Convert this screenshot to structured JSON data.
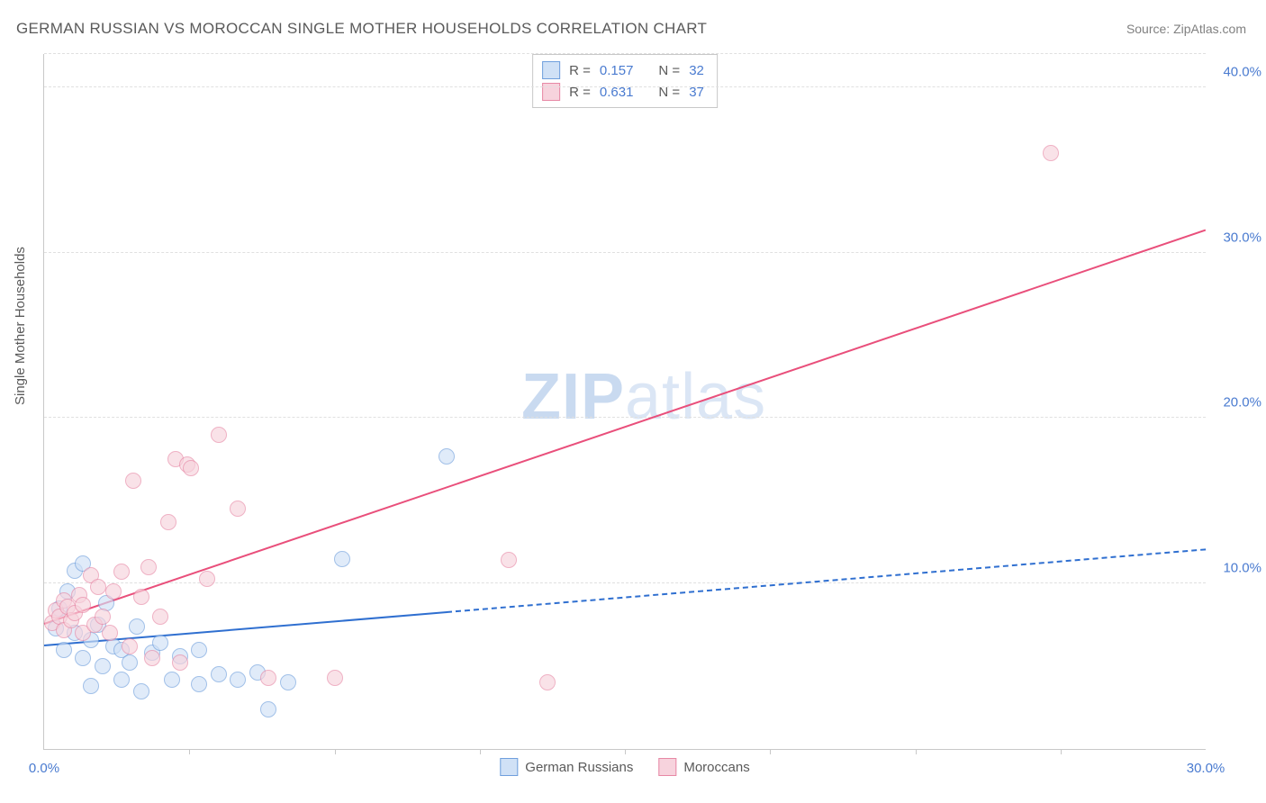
{
  "title": "GERMAN RUSSIAN VS MOROCCAN SINGLE MOTHER HOUSEHOLDS CORRELATION CHART",
  "source": "Source: ZipAtlas.com",
  "y_axis_label": "Single Mother Households",
  "watermark": {
    "bold": "ZIP",
    "rest": "atlas"
  },
  "chart": {
    "type": "scatter-correlation",
    "xlim": [
      0,
      30
    ],
    "ylim": [
      0,
      42
    ],
    "x_ticks_major": [
      0,
      30
    ],
    "x_ticks_minor": [
      3.75,
      7.5,
      11.25,
      15,
      18.75,
      22.5,
      26.25
    ],
    "y_ticks": [
      10,
      20,
      30,
      40
    ],
    "x_tick_labels": {
      "0": "0.0%",
      "30": "30.0%"
    },
    "y_tick_labels": {
      "10": "10.0%",
      "20": "20.0%",
      "30": "30.0%",
      "40": "40.0%"
    },
    "background_color": "#ffffff",
    "grid_color": "#e0e0e0",
    "axis_color": "#c8c8c8",
    "tick_label_color": "#4a7bd0",
    "point_radius": 9,
    "series": [
      {
        "name": "German Russians",
        "fill": "#d0e1f6",
        "stroke": "#6f9fdd",
        "fill_opacity": 0.65,
        "trend": {
          "x1": 0,
          "y1": 6.2,
          "x2": 30,
          "y2": 12.0,
          "solid_until_x": 10.4,
          "color": "#2f6fd0",
          "width": 2
        },
        "points": [
          [
            0.3,
            7.3
          ],
          [
            0.4,
            8.5
          ],
          [
            0.5,
            6.0
          ],
          [
            0.6,
            9.5
          ],
          [
            0.8,
            10.8
          ],
          [
            0.8,
            7.0
          ],
          [
            1.0,
            5.5
          ],
          [
            1.0,
            11.2
          ],
          [
            1.2,
            6.6
          ],
          [
            1.2,
            3.8
          ],
          [
            1.4,
            7.5
          ],
          [
            1.5,
            5.0
          ],
          [
            1.6,
            8.8
          ],
          [
            1.8,
            6.2
          ],
          [
            2.0,
            4.2
          ],
          [
            2.0,
            6.0
          ],
          [
            2.2,
            5.2
          ],
          [
            2.4,
            7.4
          ],
          [
            2.5,
            3.5
          ],
          [
            2.8,
            5.8
          ],
          [
            3.0,
            6.4
          ],
          [
            3.3,
            4.2
          ],
          [
            3.5,
            5.6
          ],
          [
            4.0,
            6.0
          ],
          [
            4.0,
            3.9
          ],
          [
            4.5,
            4.5
          ],
          [
            5.0,
            4.2
          ],
          [
            5.5,
            4.6
          ],
          [
            5.8,
            2.4
          ],
          [
            6.3,
            4.0
          ],
          [
            7.7,
            11.5
          ],
          [
            10.4,
            17.7
          ]
        ]
      },
      {
        "name": "Moroccans",
        "fill": "#f7d3dd",
        "stroke": "#e788a5",
        "fill_opacity": 0.65,
        "trend": {
          "x1": 0,
          "y1": 7.5,
          "x2": 30,
          "y2": 31.3,
          "solid_until_x": 30,
          "color": "#e94f7b",
          "width": 2
        },
        "points": [
          [
            0.2,
            7.6
          ],
          [
            0.3,
            8.4
          ],
          [
            0.4,
            8.0
          ],
          [
            0.5,
            9.0
          ],
          [
            0.5,
            7.2
          ],
          [
            0.6,
            8.6
          ],
          [
            0.7,
            7.8
          ],
          [
            0.8,
            8.2
          ],
          [
            0.9,
            9.3
          ],
          [
            1.0,
            7.0
          ],
          [
            1.0,
            8.7
          ],
          [
            1.2,
            10.5
          ],
          [
            1.3,
            7.5
          ],
          [
            1.4,
            9.8
          ],
          [
            1.5,
            8.0
          ],
          [
            1.7,
            7.0
          ],
          [
            1.8,
            9.5
          ],
          [
            2.0,
            10.7
          ],
          [
            2.2,
            6.2
          ],
          [
            2.3,
            16.2
          ],
          [
            2.5,
            9.2
          ],
          [
            2.7,
            11.0
          ],
          [
            2.8,
            5.5
          ],
          [
            3.0,
            8.0
          ],
          [
            3.2,
            13.7
          ],
          [
            3.4,
            17.5
          ],
          [
            3.5,
            5.2
          ],
          [
            3.7,
            17.2
          ],
          [
            3.8,
            17.0
          ],
          [
            4.2,
            10.3
          ],
          [
            4.5,
            19.0
          ],
          [
            5.0,
            14.5
          ],
          [
            5.8,
            4.3
          ],
          [
            7.5,
            4.3
          ],
          [
            12.0,
            11.4
          ],
          [
            13.0,
            4.0
          ],
          [
            26.0,
            36.0
          ]
        ]
      }
    ],
    "top_legend": [
      {
        "swatch_fill": "#d0e1f6",
        "swatch_stroke": "#6f9fdd",
        "r_label": "R =",
        "r_value": "0.157",
        "n_label": "N =",
        "n_value": "32"
      },
      {
        "swatch_fill": "#f7d3dd",
        "swatch_stroke": "#e788a5",
        "r_label": "R =",
        "r_value": "0.631",
        "n_label": "N =",
        "n_value": "37"
      }
    ],
    "bottom_legend": [
      {
        "swatch_fill": "#d0e1f6",
        "swatch_stroke": "#6f9fdd",
        "label": "German Russians"
      },
      {
        "swatch_fill": "#f7d3dd",
        "swatch_stroke": "#e788a5",
        "label": "Moroccans"
      }
    ]
  }
}
